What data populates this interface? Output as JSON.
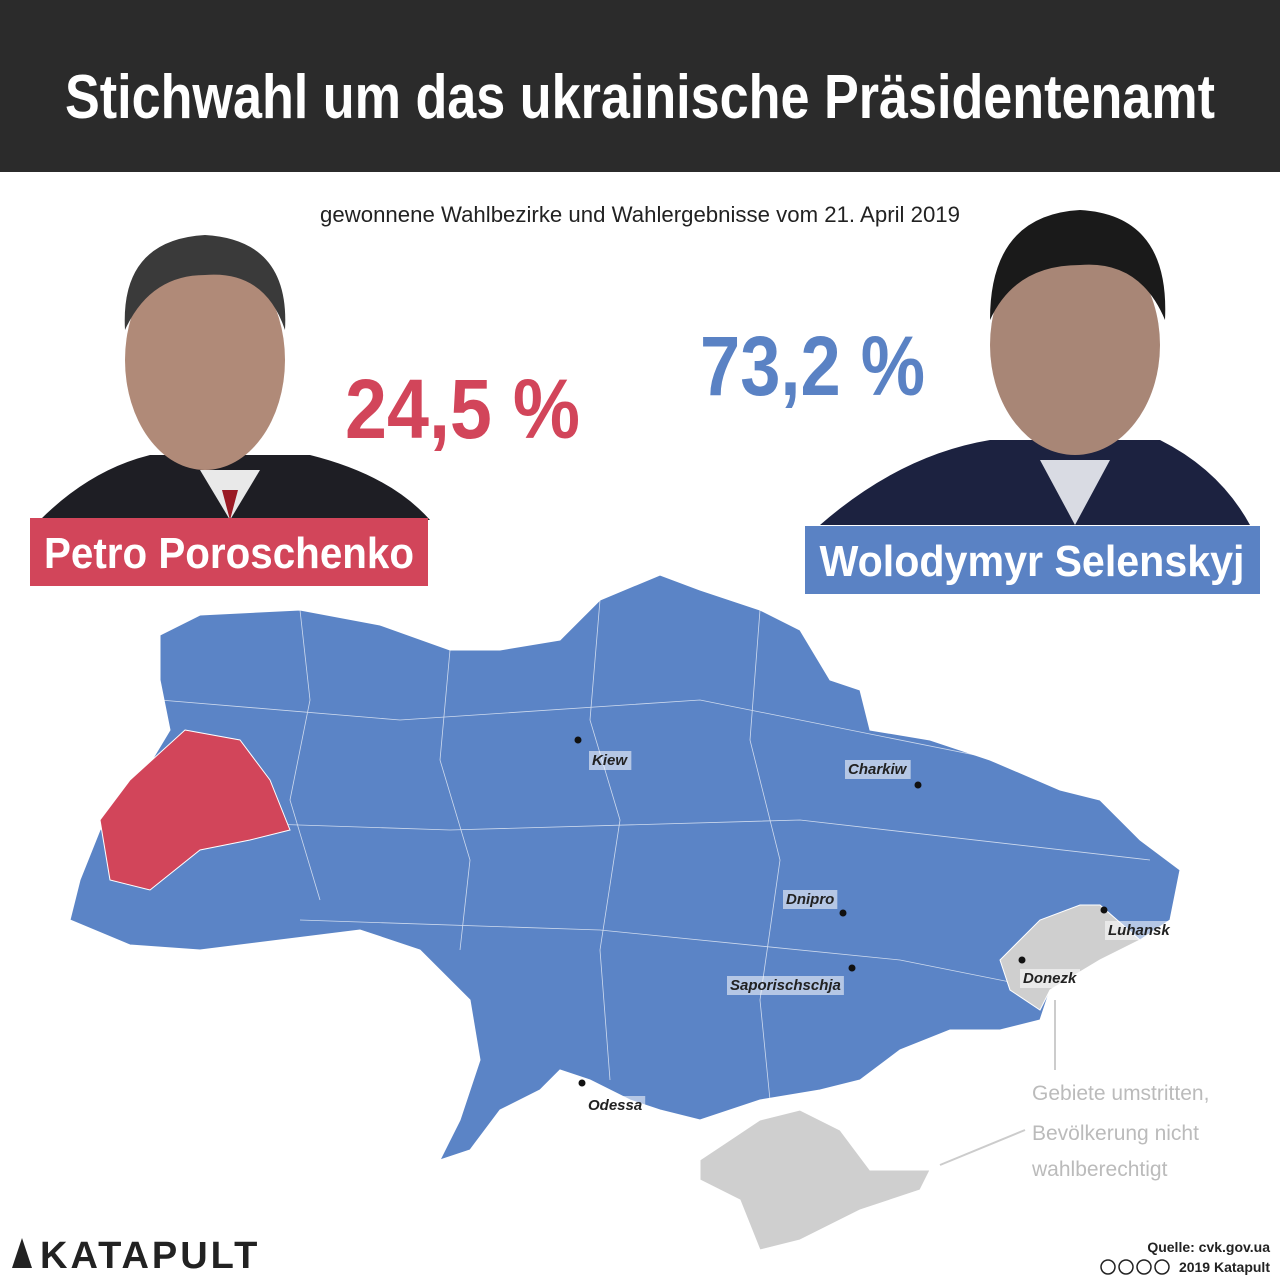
{
  "header": {
    "title": "Stichwahl um das ukrainische Präsidentenamt"
  },
  "subtitle": "gewonnene Wahlbezirke und Wahlergebnisse vom 21. April 2019",
  "candidates": [
    {
      "name": "Petro Poroschenko",
      "result": "24,5 %"
    },
    {
      "name": "Wolodymyr Selenskyj",
      "result": "73,2 %"
    }
  ],
  "map": {
    "cities": [
      "Kiew",
      "Charkiw",
      "Dnipro",
      "Saporischschja",
      "Luhansk",
      "Donezk",
      "Odessa"
    ],
    "note": [
      "Gebiete umstritten,",
      "Bevölkerung nicht",
      "wahlberechtigt"
    ]
  },
  "footer": {
    "logo": "KATAPULT",
    "source": "Quelle: cvk.gov.ua",
    "copyright": "2019 Katapult"
  }
}
